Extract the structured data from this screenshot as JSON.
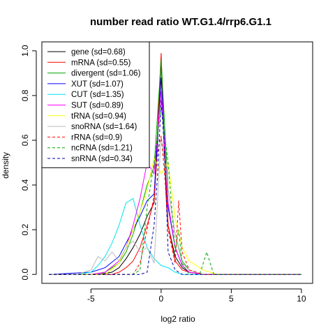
{
  "chart_data": {
    "type": "line",
    "title": "number read ratio WT.G1.4/rrp6.G1.1",
    "xlabel": "log2 ratio",
    "ylabel": "density",
    "xlim": [
      -8.5,
      10.8
    ],
    "ylim": [
      -0.04,
      1.04
    ],
    "xticks": [
      -5,
      0,
      5,
      10
    ],
    "yticks": [
      0.0,
      0.2,
      0.4,
      0.6,
      0.8,
      1.0
    ],
    "grid": false,
    "legend_position": "top-left",
    "series": [
      {
        "name": "gene (sd=0.68)",
        "color": "#000000",
        "dash": "solid",
        "x": [
          -8,
          -6,
          -4.5,
          -3.5,
          -3,
          -2.5,
          -2,
          -1.5,
          -1,
          -0.5,
          -0.25,
          0,
          0.25,
          0.5,
          1,
          1.5,
          2,
          3,
          5,
          10
        ],
        "y": [
          0,
          0,
          0,
          0.01,
          0.03,
          0.07,
          0.12,
          0.18,
          0.26,
          0.32,
          0.6,
          0.96,
          0.5,
          0.22,
          0.08,
          0.03,
          0.01,
          0,
          0,
          0
        ]
      },
      {
        "name": "mRNA (sd=0.55)",
        "color": "#ff0000",
        "dash": "solid",
        "x": [
          -8,
          -5,
          -3.5,
          -3,
          -2.5,
          -2,
          -1.5,
          -1,
          -0.5,
          -0.25,
          0,
          0.25,
          0.5,
          1,
          1.5,
          2,
          3,
          5,
          10
        ],
        "y": [
          0,
          0,
          0,
          0.01,
          0.03,
          0.06,
          0.12,
          0.22,
          0.33,
          0.65,
          0.99,
          0.55,
          0.22,
          0.06,
          0.02,
          0.01,
          0,
          0,
          0
        ]
      },
      {
        "name": "divergent (sd=1.06)",
        "color": "#00aa00",
        "dash": "solid",
        "x": [
          -8,
          -5,
          -4,
          -3,
          -2.5,
          -2,
          -1.5,
          -1,
          -0.5,
          0,
          0.5,
          1,
          1.5,
          2,
          3,
          5,
          10
        ],
        "y": [
          0,
          0,
          0.01,
          0.05,
          0.1,
          0.18,
          0.28,
          0.4,
          0.48,
          0.96,
          0.38,
          0.18,
          0.06,
          0.02,
          0,
          0,
          0
        ]
      },
      {
        "name": "XUT (sd=1.07)",
        "color": "#0000ff",
        "dash": "solid",
        "x": [
          -8,
          -5,
          -4,
          -3,
          -2.5,
          -2,
          -1.5,
          -1,
          -0.5,
          0,
          0.5,
          1,
          1.5,
          2,
          3,
          5,
          10
        ],
        "y": [
          0,
          0.01,
          0.03,
          0.08,
          0.14,
          0.2,
          0.26,
          0.33,
          0.36,
          0.88,
          0.3,
          0.12,
          0.04,
          0.01,
          0,
          0,
          0
        ]
      },
      {
        "name": "CUT (sd=1.35)",
        "color": "#00e5ee",
        "dash": "solid",
        "x": [
          -8,
          -6,
          -5,
          -4.5,
          -4,
          -3.5,
          -3,
          -2.5,
          -2,
          -1.5,
          -1,
          -0.5,
          0,
          0.5,
          1,
          1.5,
          2,
          3,
          5,
          10
        ],
        "y": [
          0,
          0,
          0.01,
          0.04,
          0.08,
          0.14,
          0.22,
          0.32,
          0.34,
          0.22,
          0.12,
          0.07,
          0.04,
          0.03,
          0.01,
          0,
          0,
          0,
          0,
          0
        ]
      },
      {
        "name": "SUT (sd=0.89)",
        "color": "#ff00ff",
        "dash": "solid",
        "x": [
          -8,
          -5,
          -4,
          -3,
          -2.5,
          -2,
          -1.5,
          -1,
          -0.5,
          0,
          0.5,
          1,
          1.5,
          2,
          3,
          5,
          10
        ],
        "y": [
          0,
          0,
          0.01,
          0.06,
          0.12,
          0.22,
          0.34,
          0.5,
          0.45,
          0.82,
          0.32,
          0.12,
          0.04,
          0.01,
          0,
          0,
          0
        ]
      },
      {
        "name": "tRNA (sd=0.94)",
        "color": "#ffff00",
        "dash": "solid",
        "x": [
          -8,
          -4,
          -3,
          -2.5,
          -2,
          -1.5,
          -1,
          -0.5,
          0,
          0.5,
          1,
          1.5,
          2,
          3,
          3.5,
          4,
          10
        ],
        "y": [
          0,
          0,
          0.05,
          0.12,
          0.2,
          0.28,
          0.38,
          0.52,
          0.45,
          0.5,
          0.25,
          0.12,
          0.06,
          0.02,
          0.01,
          0,
          0
        ]
      },
      {
        "name": "snoRNA (sd=1.64)",
        "color": "#bbbbbb",
        "dash": "solid",
        "x": [
          -8,
          -6,
          -5,
          -4.5,
          -4,
          -3.5,
          -3,
          -2.5,
          -2,
          -1.5,
          -1,
          -0.5,
          0,
          0.5,
          1,
          1.5,
          2,
          3,
          5,
          10
        ],
        "y": [
          0,
          0,
          0.02,
          0.08,
          0.06,
          0.1,
          0.06,
          0.12,
          0.15,
          0.1,
          0.12,
          0.05,
          0.62,
          0.38,
          0.18,
          0.05,
          0.02,
          0,
          0,
          0
        ]
      },
      {
        "name": "rRNA (sd=0.9)",
        "color": "#ff0000",
        "dash": "dashed",
        "x": [
          -8,
          -2,
          -1.5,
          -1,
          -0.5,
          -0.25,
          0,
          0.25,
          0.5,
          1,
          1.25,
          1.5,
          2,
          3,
          5,
          10
        ],
        "y": [
          0,
          0,
          0.05,
          0.2,
          0.35,
          0.55,
          0.62,
          0.45,
          0.2,
          0.05,
          0.33,
          0.1,
          0.02,
          0,
          0,
          0
        ]
      },
      {
        "name": "ncRNA (sd=1.21)",
        "color": "#00aa00",
        "dash": "dashed",
        "x": [
          -8,
          -2,
          -1.5,
          -1,
          -0.5,
          0,
          0.5,
          1,
          1.25,
          1.5,
          2,
          2.75,
          3.25,
          3.75,
          4,
          10
        ],
        "y": [
          0,
          0,
          0.02,
          0.3,
          0.5,
          0.75,
          0.5,
          0.1,
          0.2,
          0.05,
          0,
          0,
          0.1,
          0,
          0,
          0
        ]
      },
      {
        "name": "snRNA (sd=0.34)",
        "color": "#0000aa",
        "dash": "dashed",
        "x": [
          -8,
          -2,
          -1.5,
          -1,
          -0.5,
          -0.25,
          0,
          0.25,
          0.5,
          1,
          1.5,
          2,
          5,
          10
        ],
        "y": [
          0,
          0,
          0,
          0.01,
          0.22,
          0.45,
          0.78,
          0.55,
          0.1,
          0.02,
          0,
          0,
          0,
          0
        ]
      }
    ]
  }
}
